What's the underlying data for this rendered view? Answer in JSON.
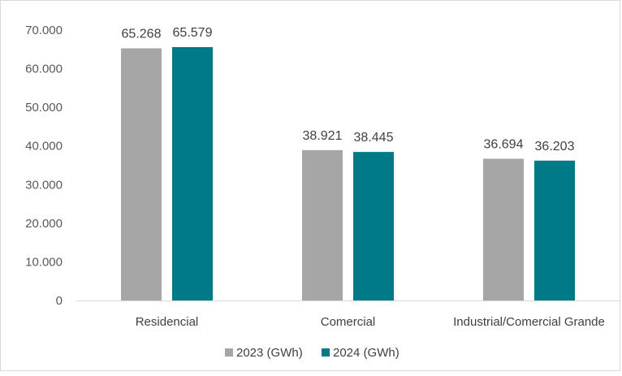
{
  "chart_data": {
    "type": "bar",
    "categories": [
      "Residencial",
      "Comercial",
      "Industrial/Comercial Grande"
    ],
    "series": [
      {
        "name": "2023 (GWh)",
        "values": [
          65268,
          38921,
          36694
        ],
        "labels": [
          "65.268",
          "38.921",
          "36.694"
        ],
        "color": "#a6a6a6"
      },
      {
        "name": "2024 (GWh)",
        "values": [
          65579,
          38445,
          36203
        ],
        "labels": [
          "65.579",
          "38.445",
          "36.203"
        ],
        "color": "#007a87"
      }
    ],
    "yticks": [
      0,
      10000,
      20000,
      30000,
      40000,
      50000,
      60000,
      70000
    ],
    "ytick_labels": [
      "0",
      "10.000",
      "20.000",
      "30.000",
      "40.000",
      "50.000",
      "60.000",
      "70.000"
    ],
    "ylim": [
      0,
      70000
    ],
    "grid": false,
    "legend_position": "bottom"
  }
}
